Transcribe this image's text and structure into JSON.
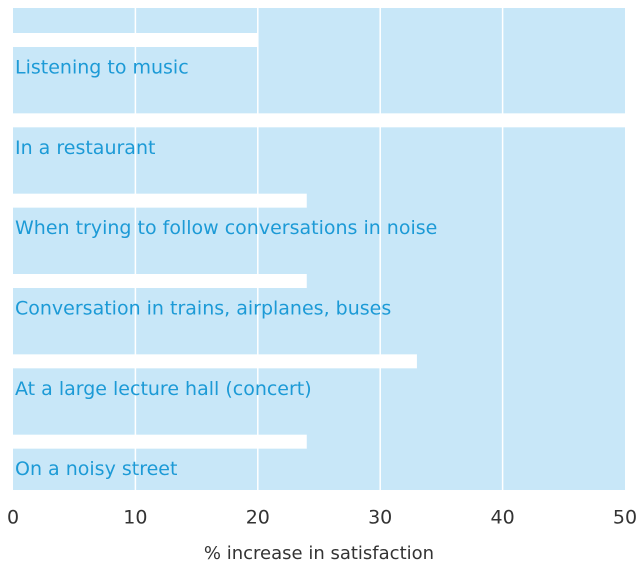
{
  "chart_data": {
    "type": "bar",
    "orientation": "horizontal",
    "categories": [
      "Listening to music",
      "In a restaurant",
      "When trying to follow conversations in noise",
      "Conversation in trains, airplanes, buses",
      "At a large lecture hall (concert)",
      "On a noisy street"
    ],
    "values": [
      20,
      50,
      24,
      24,
      33,
      24
    ],
    "color": "#ffffff",
    "background": "#c8e7f8",
    "xlabel": "% increase in satisfaction",
    "xlim": [
      0,
      50
    ],
    "xticks": [
      0,
      10,
      20,
      30,
      40,
      50
    ],
    "grid": true
  }
}
